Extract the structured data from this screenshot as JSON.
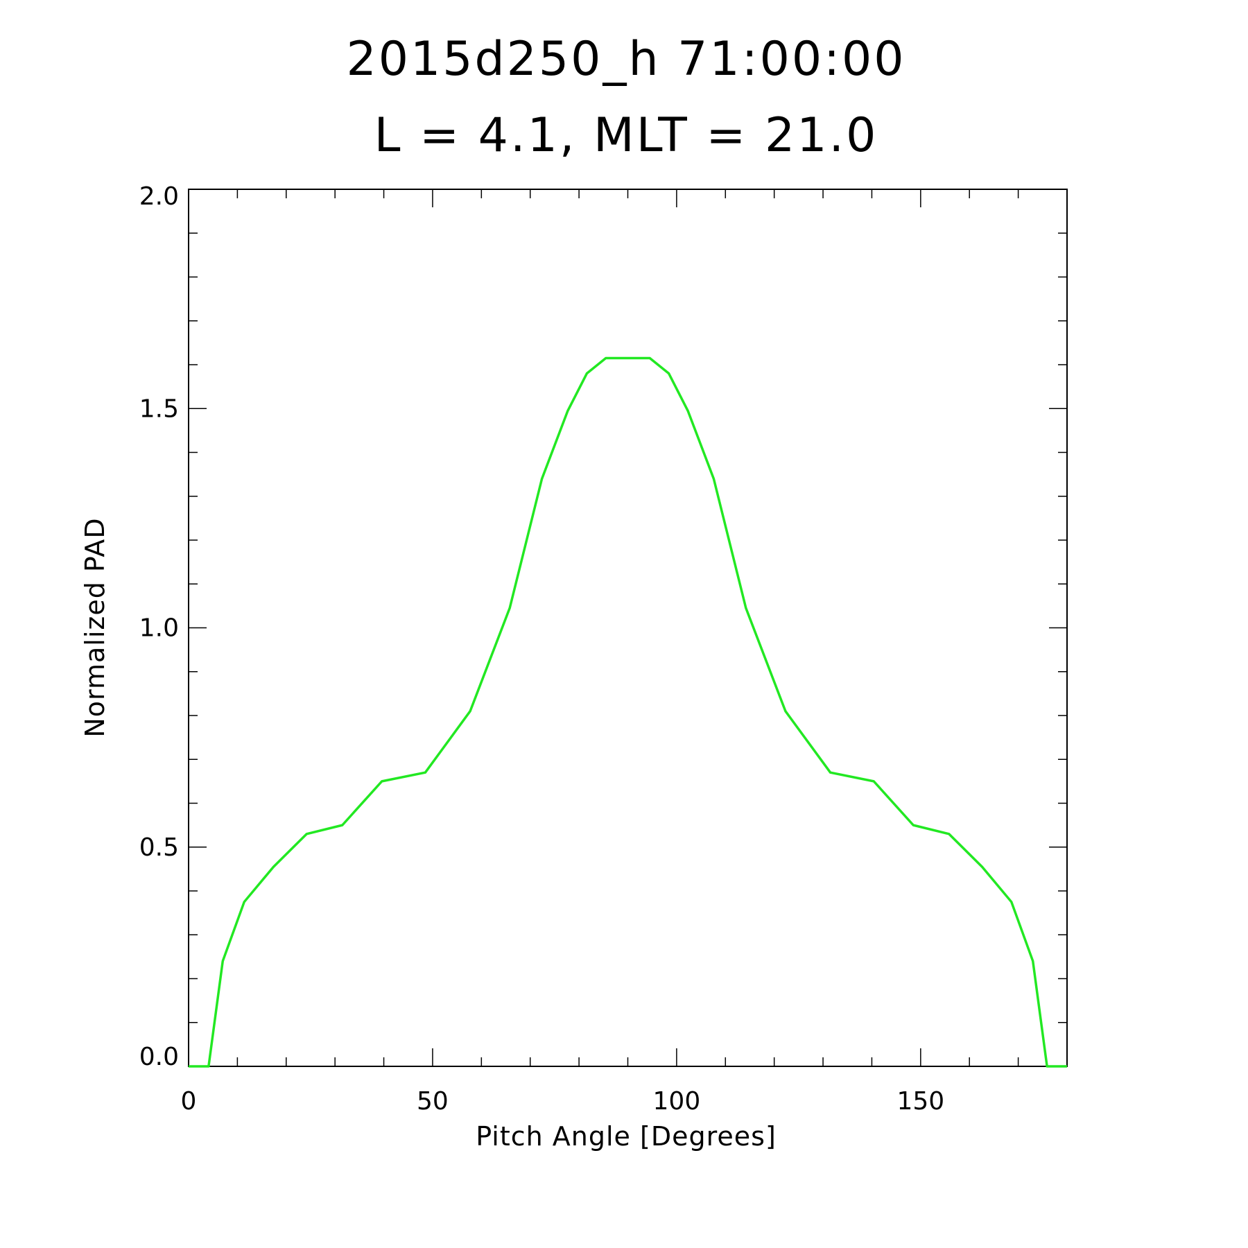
{
  "chart_data": {
    "type": "line",
    "title_line1": "2015d250_h  71:00:00",
    "title_line2": "L = 4.1, MLT = 21.0",
    "xlabel": "Pitch Angle [Degrees]",
    "ylabel": "Normalized PAD",
    "xlim": [
      0,
      180
    ],
    "ylim": [
      0.0,
      2.0
    ],
    "x_ticks": [
      {
        "value": 0,
        "label": "0"
      },
      {
        "value": 50,
        "label": "50"
      },
      {
        "value": 100,
        "label": "100"
      },
      {
        "value": 150,
        "label": "150"
      }
    ],
    "x_minor_step": 10,
    "y_ticks": [
      {
        "value": 0.0,
        "label": "0.0"
      },
      {
        "value": 0.5,
        "label": "0.5"
      },
      {
        "value": 1.0,
        "label": "1.0"
      },
      {
        "value": 1.5,
        "label": "1.5"
      },
      {
        "value": 2.0,
        "label": "2.0"
      }
    ],
    "y_minor_step": 0.1,
    "grid": false,
    "series": [
      {
        "color": "#22e822",
        "x": [
          0,
          4.1,
          7,
          11.4,
          17.4,
          24.2,
          31.5,
          39.6,
          48.5,
          57.7,
          65.8,
          72.4,
          77.7,
          81.6,
          85.5,
          89.9,
          94.5,
          98.4,
          102.3,
          107.6,
          114.2,
          122.3,
          131.5,
          140.4,
          148.5,
          155.8,
          162.6,
          168.6,
          173,
          175.9,
          180
        ],
        "y": [
          0.0,
          0.0,
          0.24,
          0.375,
          0.455,
          0.53,
          0.55,
          0.65,
          0.67,
          0.81,
          1.045,
          1.34,
          1.495,
          1.58,
          1.615,
          1.615,
          1.615,
          1.58,
          1.495,
          1.34,
          1.045,
          0.81,
          0.67,
          0.65,
          0.55,
          0.53,
          0.455,
          0.375,
          0.24,
          0.0,
          0.0
        ]
      }
    ]
  }
}
